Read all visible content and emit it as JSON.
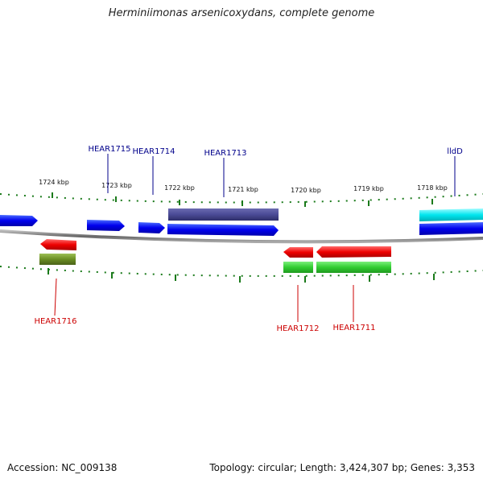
{
  "title": "Herminiimonas arsenicoxydans, complete genome",
  "footer": {
    "accession": "Accession: NC_009138",
    "topology": "Topology: circular; Length: 3,424,307 bp; Genes: 3,353"
  },
  "scale_ticks": [
    "1724 kbp",
    "1723 kbp",
    "1722 kbp",
    "1721 kbp",
    "1720 kbp",
    "1719 kbp",
    "1718 kbp"
  ],
  "gene_labels": {
    "HEAR1715": "HEAR1715",
    "HEAR1714": "HEAR1714",
    "HEAR1713": "HEAR1713",
    "lldD": "lldD",
    "HEAR1716": "HEAR1716",
    "HEAR1712": "HEAR1712",
    "HEAR1711": "HEAR1711"
  },
  "colors": {
    "forward_gene": "#0000ee",
    "reverse_gene": "#ee0000",
    "forward_label": "#00008b",
    "reverse_label": "#cc0000",
    "tick": "#1a7a1a",
    "backbone": "#777777",
    "cds_forward_pale": "#4b4b96",
    "cds_forward_cyan": "#00e5ee",
    "cds_reverse_olive": "#6b8e23",
    "cds_reverse_green": "#32cd32"
  }
}
